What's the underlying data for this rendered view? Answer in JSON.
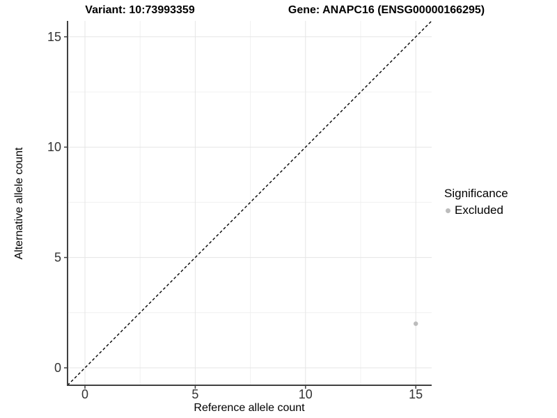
{
  "chart_data": {
    "type": "scatter",
    "title_left": "Variant: 10:73993359",
    "title_right": "Gene: ANAPC16 (ENSG00000166295)",
    "xlabel": "Reference allele count",
    "ylabel": "Alternative allele count",
    "xlim": [
      -0.79,
      15.72
    ],
    "ylim": [
      -0.79,
      15.72
    ],
    "x_ticks": [
      0,
      5,
      10,
      15
    ],
    "y_ticks": [
      0,
      5,
      10,
      15
    ],
    "x_minor_ticks": [
      2.5,
      7.5,
      12.5
    ],
    "y_minor_ticks": [
      2.5,
      7.5,
      12.5
    ],
    "grid": "major and minor, light gray on white panel",
    "identity_line": {
      "equation": "y = x",
      "style": "dashed",
      "color": "#000000"
    },
    "series": [
      {
        "name": "Excluded",
        "color": "#bcbcbc",
        "points": [
          {
            "x": 15,
            "y": 2
          }
        ]
      }
    ],
    "legend": {
      "title": "Significance",
      "position": "right",
      "items": [
        {
          "label": "Excluded",
          "color": "#bcbcbc"
        }
      ]
    },
    "colors": {
      "axis_line": "#404040",
      "tick_label": "#333333",
      "major_grid": "#e5e5e5",
      "minor_grid": "#f0f0f0",
      "background": "#ffffff"
    }
  }
}
